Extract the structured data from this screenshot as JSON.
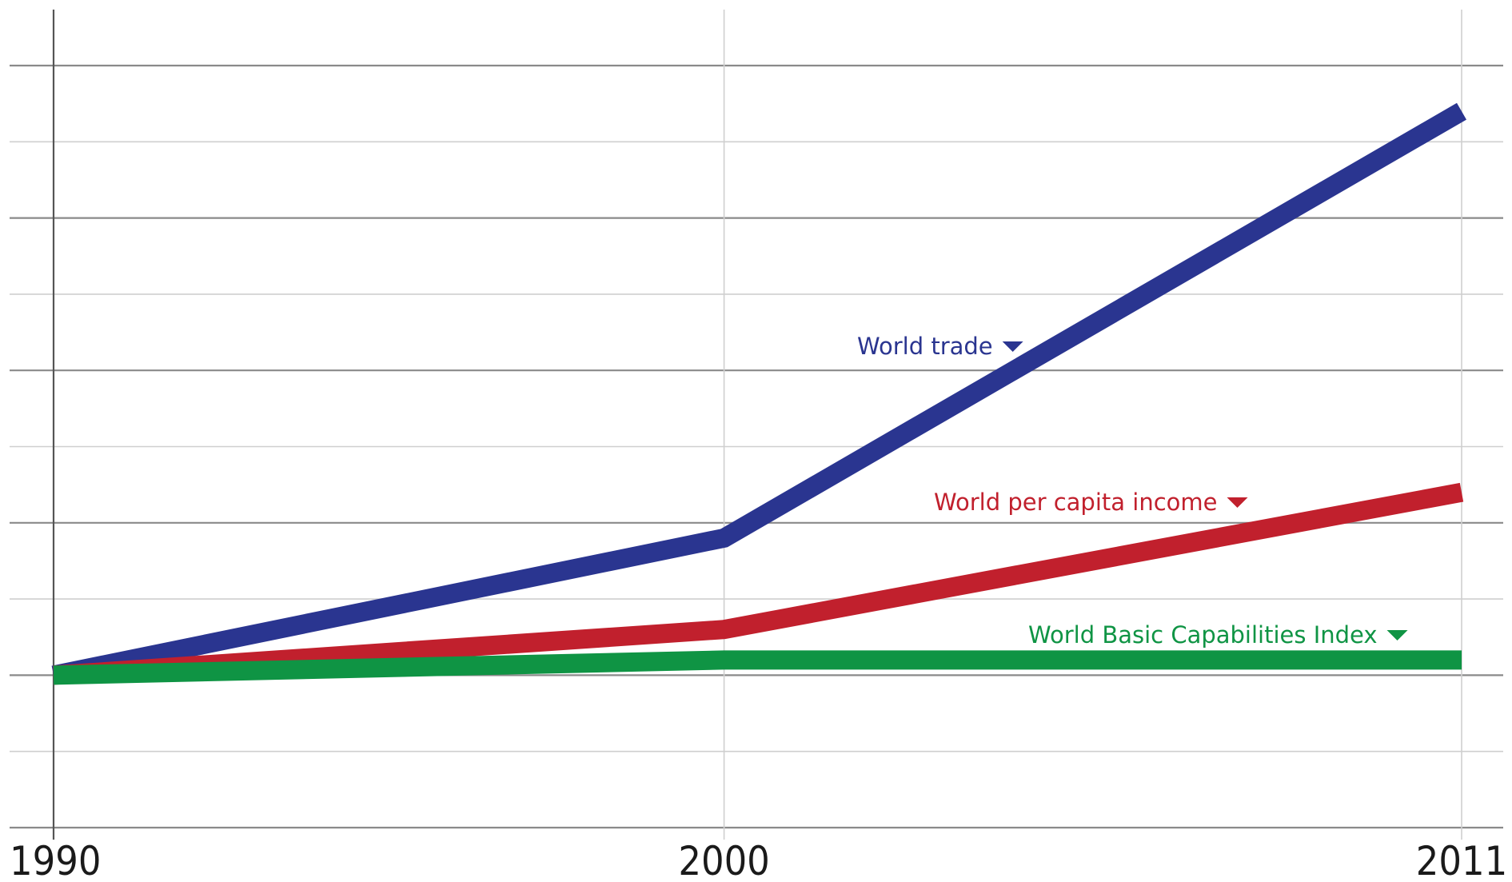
{
  "chart_data": {
    "type": "line",
    "title": "",
    "xlabel": "",
    "ylabel": "",
    "x": [
      1990,
      2000,
      2011
    ],
    "xlim": [
      1990,
      2011
    ],
    "x_tick_labels": [
      "1990",
      "2000",
      "2011"
    ],
    "ylim": [
      -2,
      8
    ],
    "y_gridlines": [
      -2,
      -1,
      0,
      1,
      2,
      3,
      4,
      5,
      6,
      7,
      8
    ],
    "y_tick_labels_shown": false,
    "grid": true,
    "legend": "inline-labels",
    "series": [
      {
        "name": "World trade",
        "values": [
          0,
          1.8,
          7.4
        ],
        "color": "#2a3590"
      },
      {
        "name": "World per capita income",
        "values": [
          0,
          0.6,
          2.4
        ],
        "color": "#c1202d"
      },
      {
        "name": "World Basic Capabilities Index",
        "values": [
          0,
          0.2,
          0.2
        ],
        "color": "#0f9444"
      }
    ],
    "marker": "down-triangle"
  }
}
